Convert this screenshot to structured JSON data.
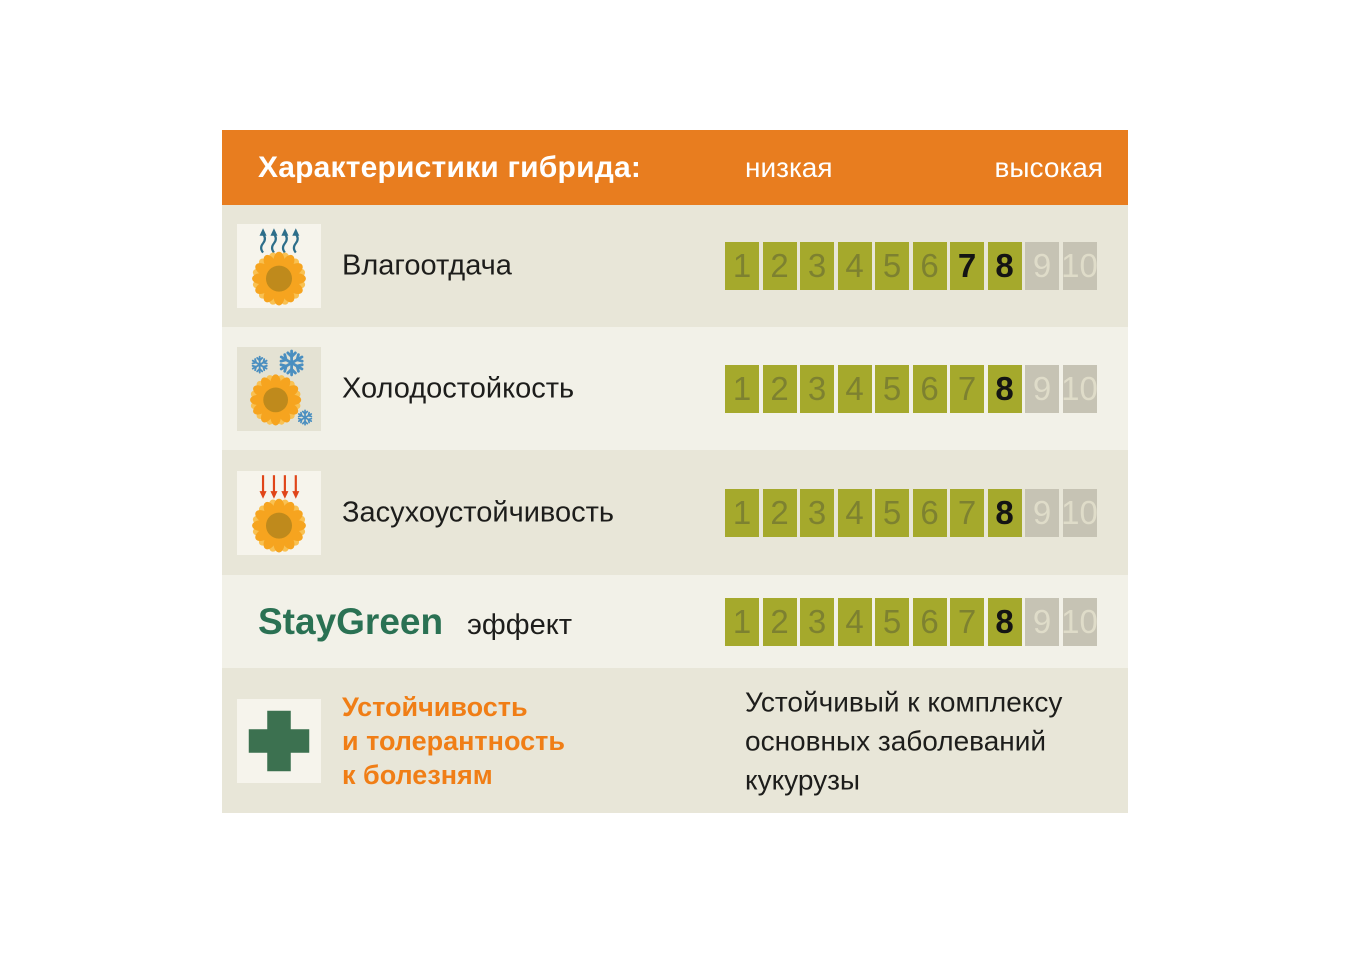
{
  "header": {
    "title": "Характеристики гибрида:",
    "scale_low_label": "низкая",
    "scale_high_label": "высокая"
  },
  "rows": [
    {
      "type": "scale",
      "icon": "sunflower-evaporation-icon",
      "label": "Влагоотдача",
      "scale": {
        "min": 1,
        "max": 10,
        "green_upto": 8,
        "highlighted": [
          7,
          8
        ]
      }
    },
    {
      "type": "scale",
      "icon": "sunflower-snowflakes-icon",
      "label": "Холодостойкость",
      "scale": {
        "min": 1,
        "max": 10,
        "green_upto": 8,
        "highlighted": [
          8
        ]
      }
    },
    {
      "type": "scale",
      "icon": "sunflower-sun-arrows-icon",
      "label": "Засухоустойчивость",
      "scale": {
        "min": 1,
        "max": 10,
        "green_upto": 8,
        "highlighted": [
          8
        ]
      }
    },
    {
      "type": "scale-brand",
      "brand": "StayGreen",
      "label": "эффект",
      "scale": {
        "min": 1,
        "max": 10,
        "green_upto": 8,
        "highlighted": [
          8
        ]
      }
    },
    {
      "type": "text",
      "icon": "green-cross-icon",
      "label_lines": [
        "Устойчивость",
        "и толерантность",
        "к болезням"
      ],
      "description_lines": [
        "Устойчивый к комплексу",
        "основных заболеваний",
        "кукурузы"
      ]
    }
  ],
  "colors": {
    "header_bg": "#e87d1f",
    "row_dark_bg": "#e8e6d8",
    "row_light_bg": "#f2f1e8",
    "tile_light_bg": "#f6f4ec",
    "tile_dark_bg": "#e4e2d3",
    "cell_green": "#a5a92c",
    "cell_gray": "#c6c3b4",
    "cell_number_green": "#7d8130",
    "cell_number_gray": "#dfdcc9",
    "cell_number_highlight": "#141414",
    "staygreen_green": "#2a7153",
    "accent_orange": "#f07e16",
    "flower_petal": "#f6a41f",
    "flower_center": "#bf8a1c",
    "evaporation_blue": "#2d6e8a",
    "snowflake_blue": "#4b8fc0",
    "sun_arrow_red": "#e04519",
    "cross_green": "#3c7150"
  },
  "chart_data": {
    "type": "table",
    "title": "Характеристики гибрида",
    "scale": {
      "min": 1,
      "max": 10,
      "low_label": "низкая",
      "high_label": "высокая",
      "colored_range": [
        1,
        8
      ]
    },
    "categories": [
      "Влагоотдача",
      "Холодостойкость",
      "Засухоустойчивость",
      "StayGreen эффект"
    ],
    "values": [
      [
        7,
        8
      ],
      [
        8
      ],
      [
        8
      ],
      [
        8
      ]
    ],
    "disease_note": "Устойчивость и толерантность к болезням: Устойчивый к комплексу основных заболеваний кукурузы"
  }
}
